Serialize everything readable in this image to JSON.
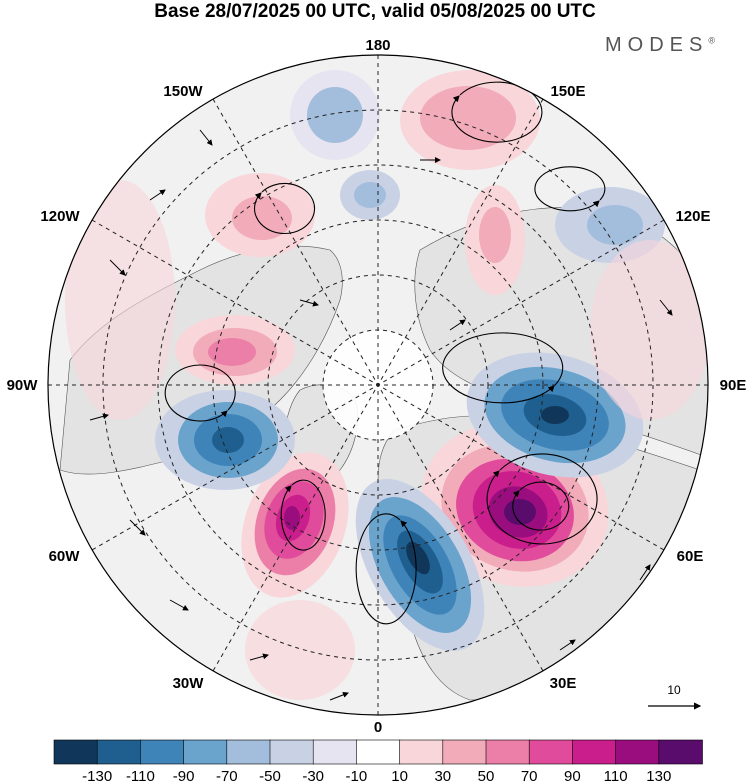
{
  "title": "Base 28/07/2025 00 UTC, valid 05/08/2025 00 UTC",
  "brand": "MODES",
  "brand_mark": "®",
  "longitude_labels": {
    "lon_180": "180",
    "lon_150w": "150W",
    "lon_150e": "150E",
    "lon_120w": "120W",
    "lon_120e": "120E",
    "lon_90w": "90W",
    "lon_90e": "90E",
    "lon_60w": "60W",
    "lon_60e": "60E",
    "lon_30w": "30W",
    "lon_30e": "30E",
    "lon_0": "0"
  },
  "reference_vector": {
    "label": "10"
  },
  "colorbar": {
    "colors": [
      "#10375a",
      "#1f5f8f",
      "#3f84b8",
      "#6aa3cc",
      "#a3bddc",
      "#c9d1e5",
      "#e6e4f0",
      "#ffffff",
      "#f8d6da",
      "#f1abb9",
      "#ec7fa8",
      "#e04c9b",
      "#c91e8b",
      "#9a0d7e",
      "#5a0c6d"
    ],
    "tick_labels": [
      "-130",
      "-110",
      "-90",
      "-70",
      "-50",
      "-30",
      "-10",
      "10",
      "30",
      "50",
      "70",
      "90",
      "110",
      "130"
    ]
  },
  "anomalies": [
    {
      "name": "anomaly-60e-high",
      "value": 130
    },
    {
      "name": "anomaly-20e-low",
      "value": -110
    },
    {
      "name": "anomaly-90e-low",
      "value": -110
    },
    {
      "name": "anomaly-55w-high",
      "value": 110
    },
    {
      "name": "anomaly-75w-low",
      "value": -90
    },
    {
      "name": "anomaly-100w-high",
      "value": 70
    },
    {
      "name": "anomaly-145e-high",
      "value": 50
    },
    {
      "name": "anomaly-135w-high",
      "value": 50
    },
    {
      "name": "anomaly-170w-low",
      "value": -50
    },
    {
      "name": "anomaly-175e-low",
      "value": -50
    },
    {
      "name": "anomaly-120e-low",
      "value": -30
    },
    {
      "name": "anomaly-160e-high",
      "value": 50
    }
  ]
}
